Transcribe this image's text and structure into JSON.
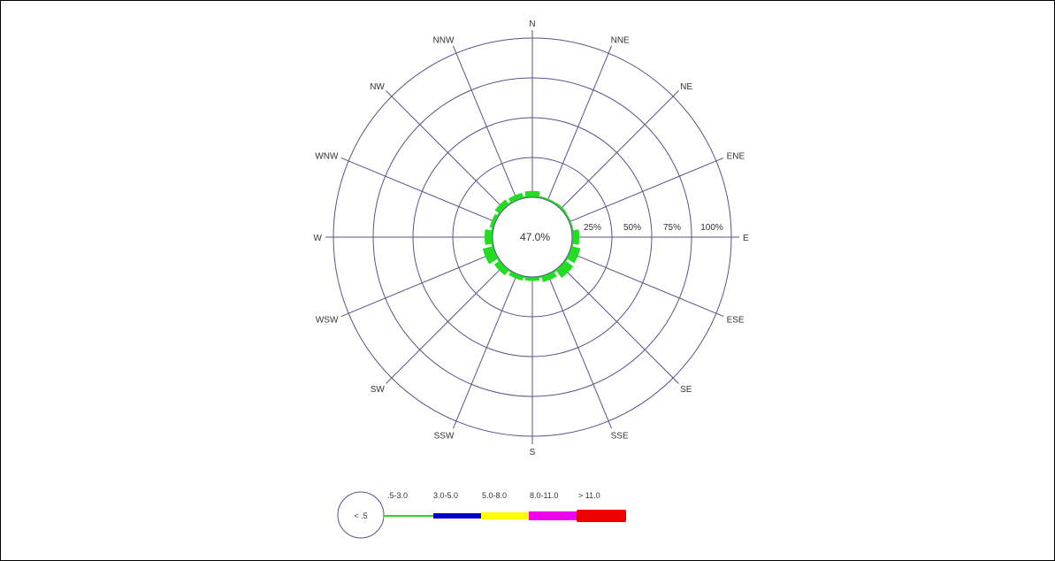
{
  "chart_data": {
    "type": "windrose",
    "directions": [
      "N",
      "NNE",
      "NE",
      "ENE",
      "E",
      "ESE",
      "SE",
      "SSE",
      "S",
      "SSW",
      "SW",
      "WSW",
      "W",
      "WNW",
      "NW",
      "NNW"
    ],
    "ring_labels": [
      "25%",
      "50%",
      "75%",
      "100%"
    ],
    "calm_label": "47.0%",
    "calm_percent": 47.0,
    "speed_bins": [
      ".5-3.0",
      "3.0-5.0",
      "5.0-8.0",
      "8.0-11.0",
      "> 11.0"
    ],
    "calm_bin_label": "< .5",
    "series": [
      {
        "name": ".5-3.0",
        "color": "#22dd22",
        "values": [
          4.0,
          1.0,
          1.5,
          1.0,
          4.5,
          6.0,
          6.5,
          4.0,
          2.5,
          3.0,
          4.5,
          7.0,
          5.0,
          2.5,
          4.0,
          3.5
        ]
      }
    ],
    "colors": {
      "grid": "#55558a",
      "bin_0_5_3_0": "#22dd22",
      "bin_3_0_5_0": "#0000cc",
      "bin_5_0_8_0": "#ffff00",
      "bin_8_0_11_0": "#ee00ee",
      "bin_11_0_plus": "#ee0000"
    }
  }
}
